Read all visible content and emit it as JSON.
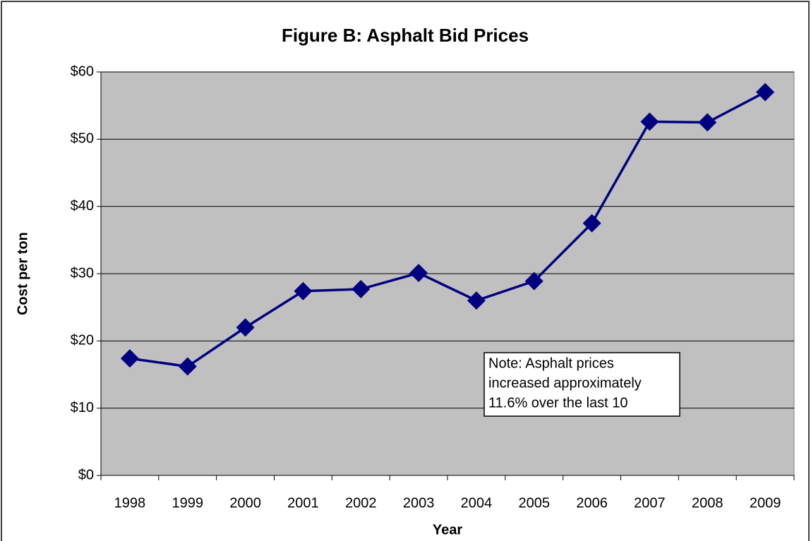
{
  "chart_data": {
    "type": "line",
    "title": "Figure B:  Asphalt Bid Prices",
    "x_label": "Year",
    "y_label": "Cost per ton",
    "categories": [
      "1998",
      "1999",
      "2000",
      "2001",
      "2002",
      "2003",
      "2004",
      "2005",
      "2006",
      "2007",
      "2008",
      "2009"
    ],
    "series": [
      {
        "name": "Asphalt Bid Prices",
        "color": "#000080",
        "values": [
          17.4,
          16.2,
          22.0,
          27.4,
          27.7,
          30.1,
          26.0,
          28.9,
          37.5,
          52.6,
          52.5,
          57.0
        ]
      }
    ],
    "ylim": [
      0,
      60
    ],
    "yticks": [
      {
        "value": 0,
        "label": "$0"
      },
      {
        "value": 10,
        "label": "$10"
      },
      {
        "value": 20,
        "label": "$20"
      },
      {
        "value": 30,
        "label": "$30"
      },
      {
        "value": 40,
        "label": "$40"
      },
      {
        "value": 50,
        "label": "$50"
      },
      {
        "value": 60,
        "label": "$60"
      }
    ],
    "grid": true,
    "plot_background": "#c0c0c0",
    "annotation": [
      "Note: Asphalt prices",
      "increased approximately",
      "11.6% over the last 10"
    ]
  }
}
